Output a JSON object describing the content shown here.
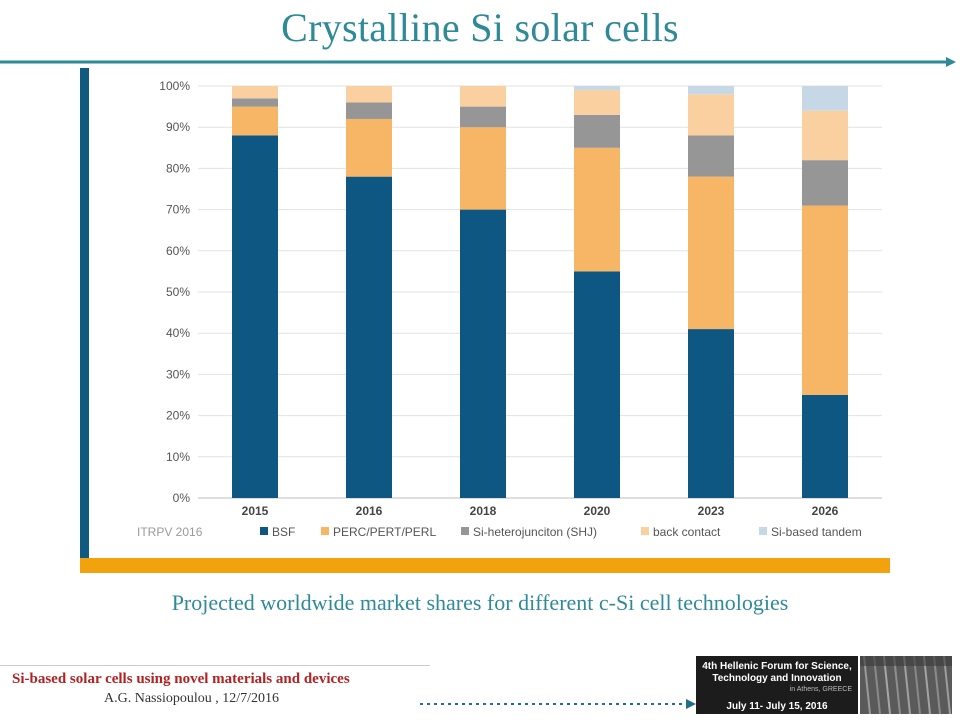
{
  "slide": {
    "title": "Crystalline Si solar cells",
    "caption": "Projected worldwide market shares for different c-Si cell technologies",
    "footer_line1": "Si-based solar cells using novel materials and devices",
    "footer_line2": "A.G. Nassiopoulou , 12/7/2016",
    "forum_line1": "4th Hellenic Forum for Science,",
    "forum_line2": "Technology and Innovation",
    "forum_line3": "in Athens, GREECE",
    "forum_dates": "July 11- July 15, 2016",
    "colors": {
      "title": "#2e8a98",
      "left_bar": "#0e5a80",
      "bottom_bar": "#f2a20c",
      "footer_red": "#b22222"
    }
  },
  "chart_data": {
    "type": "bar",
    "stacked": true,
    "title": "",
    "xlabel": "",
    "ylabel": "",
    "source_label": "ITRPV 2016",
    "categories": [
      "2015",
      "2016",
      "2018",
      "2020",
      "2023",
      "2026"
    ],
    "ylim": [
      0,
      100
    ],
    "yticks": [
      "0%",
      "10%",
      "20%",
      "30%",
      "40%",
      "50%",
      "60%",
      "70%",
      "80%",
      "90%",
      "100%"
    ],
    "grid": true,
    "legend_position": "bottom",
    "series": [
      {
        "name": "BSF",
        "color": "#0d5782",
        "values": [
          88,
          78,
          70,
          55,
          41,
          25
        ]
      },
      {
        "name": "PERC/PERT/PERL",
        "color": "#f7b566",
        "values": [
          7,
          14,
          20,
          30,
          37,
          46
        ]
      },
      {
        "name": "Si-heterojunciton (SHJ)",
        "color": "#969696",
        "values": [
          2,
          4,
          5,
          8,
          10,
          11
        ]
      },
      {
        "name": "back contact",
        "color": "#fad0a0",
        "values": [
          3,
          4,
          5,
          6,
          10,
          12
        ]
      },
      {
        "name": "Si-based tandem",
        "color": "#c6d8e6",
        "values": [
          0,
          0,
          0,
          1,
          2,
          6
        ]
      }
    ]
  }
}
